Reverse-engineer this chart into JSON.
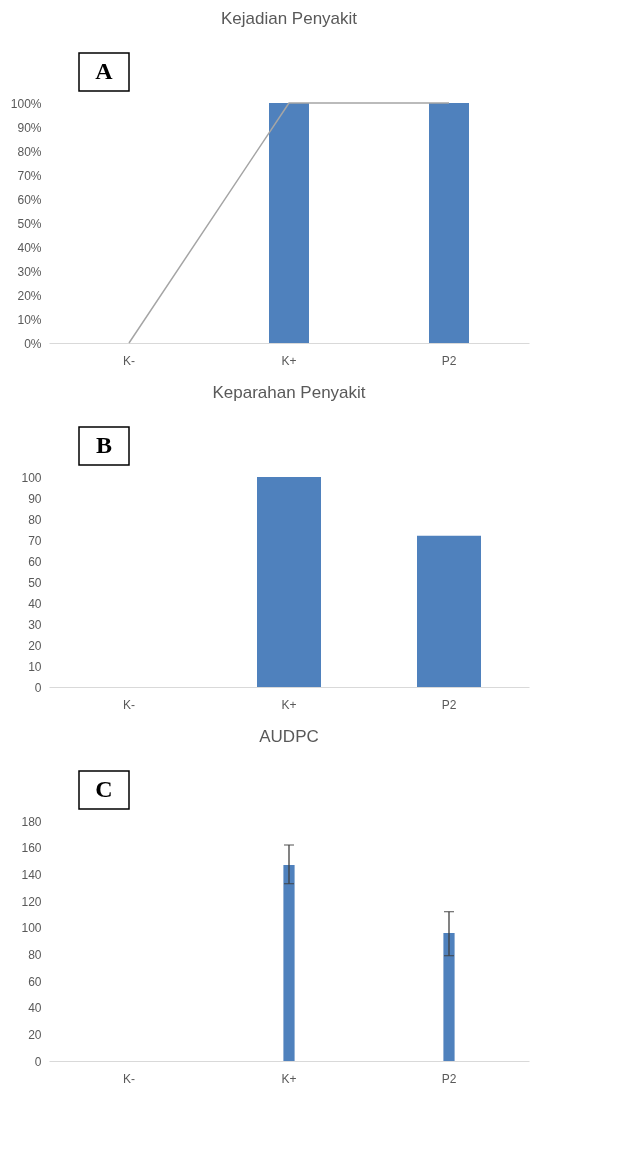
{
  "chart_data": [
    {
      "type": "bar",
      "title": "Kejadian Penyakit",
      "categories": [
        "K-",
        "K+",
        "P2"
      ],
      "series": [
        {
          "type": "bar",
          "color": "#4f81bd",
          "values": [
            0,
            100,
            100
          ]
        },
        {
          "type": "line",
          "color": "#a5a5a5",
          "values": [
            0,
            100,
            100
          ]
        }
      ],
      "ylim": [
        0,
        100
      ],
      "yticks": [
        {
          "value": 0,
          "label": "0%"
        },
        {
          "value": 10,
          "label": "10%"
        },
        {
          "value": 20,
          "label": "20%"
        },
        {
          "value": 30,
          "label": "30%"
        },
        {
          "value": 40,
          "label": "40%"
        },
        {
          "value": 50,
          "label": "50%"
        },
        {
          "value": 60,
          "label": "60%"
        },
        {
          "value": 70,
          "label": "70%"
        },
        {
          "value": 80,
          "label": "80%"
        },
        {
          "value": 90,
          "label": "90%"
        },
        {
          "value": 100,
          "label": "100%"
        }
      ],
      "grid": false,
      "annotations": [
        "A"
      ]
    },
    {
      "type": "bar",
      "title": "Keparahan Penyakit",
      "categories": [
        "K-",
        "K+",
        "P2"
      ],
      "series": [
        {
          "color": "#4f81bd",
          "values": [
            0,
            100,
            72
          ]
        }
      ],
      "ylim": [
        0,
        100
      ],
      "yticks": [
        0,
        10,
        20,
        30,
        40,
        50,
        60,
        70,
        80,
        90,
        100
      ],
      "grid": false,
      "annotations": [
        "B"
      ]
    },
    {
      "type": "bar",
      "title": "AUDPC",
      "categories": [
        "K-",
        "K+",
        "P2"
      ],
      "series": [
        {
          "color": "#4f81bd",
          "values": [
            0,
            147,
            96
          ],
          "errors": [
            null,
            [
              133,
              162
            ],
            [
              79,
              112
            ]
          ]
        }
      ],
      "ylim": [
        0,
        180
      ],
      "yticks": [
        0,
        20,
        40,
        60,
        80,
        100,
        120,
        140,
        160,
        180
      ],
      "grid": false,
      "annotations": [
        "C"
      ]
    }
  ]
}
